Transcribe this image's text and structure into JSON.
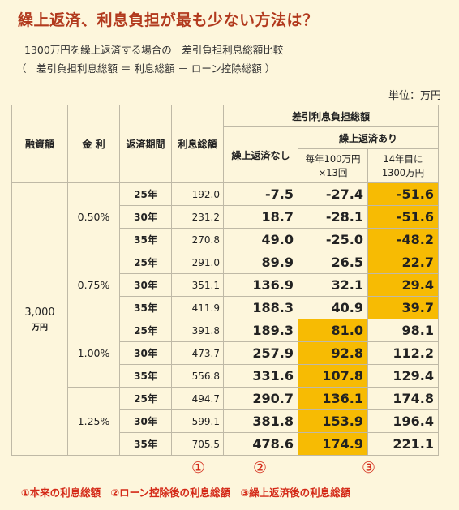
{
  "title": "繰上返済、利息負担が最も少ない方法は？",
  "subtitle1": "1300万円を繰上返済する場合の　差引負担利息総額比較",
  "subtitle2": "（　差引負担利息総額 ＝ 利息総額 － ローン控除総額 ）",
  "unit": "単位：万円",
  "headers": {
    "loan_amount": "融資額",
    "rate": "金 利",
    "period": "返済期間",
    "total_interest": "利息総額",
    "net_total": "差引利息負担総額",
    "no_prepay": "繰上返済なし",
    "with_prepay": "繰上返済あり",
    "option_a_line1": "毎年100万円",
    "option_a_line2": "×13回",
    "option_b_line1": "14年目に",
    "option_b_line2": "1300万円"
  },
  "loan_amount": "3,000",
  "loan_unit": "万円",
  "rates": [
    "0.50%",
    "0.75%",
    "1.00%",
    "1.25%"
  ],
  "rows": [
    {
      "period": "25年",
      "total": "192.0",
      "none": "-7.5",
      "a": "-27.4",
      "b": "-51.6",
      "hl": "b"
    },
    {
      "period": "30年",
      "total": "231.2",
      "none": "18.7",
      "a": "-28.1",
      "b": "-51.6",
      "hl": "b"
    },
    {
      "period": "35年",
      "total": "270.8",
      "none": "49.0",
      "a": "-25.0",
      "b": "-48.2",
      "hl": "b"
    },
    {
      "period": "25年",
      "total": "291.0",
      "none": "89.9",
      "a": "26.5",
      "b": "22.7",
      "hl": "b"
    },
    {
      "period": "30年",
      "total": "351.1",
      "none": "136.9",
      "a": "32.1",
      "b": "29.4",
      "hl": "b"
    },
    {
      "period": "35年",
      "total": "411.9",
      "none": "188.3",
      "a": "40.9",
      "b": "39.7",
      "hl": "b"
    },
    {
      "period": "25年",
      "total": "391.8",
      "none": "189.3",
      "a": "81.0",
      "b": "98.1",
      "hl": "a"
    },
    {
      "period": "30年",
      "total": "473.7",
      "none": "257.9",
      "a": "92.8",
      "b": "112.2",
      "hl": "a"
    },
    {
      "period": "35年",
      "total": "556.8",
      "none": "331.6",
      "a": "107.8",
      "b": "129.4",
      "hl": "a"
    },
    {
      "period": "25年",
      "total": "494.7",
      "none": "290.7",
      "a": "136.1",
      "b": "174.8",
      "hl": "a"
    },
    {
      "period": "30年",
      "total": "599.1",
      "none": "381.8",
      "a": "153.9",
      "b": "196.4",
      "hl": "a"
    },
    {
      "period": "35年",
      "total": "705.5",
      "none": "478.6",
      "a": "174.9",
      "b": "221.1",
      "hl": "a"
    }
  ],
  "markers": [
    "①",
    "②",
    "③"
  ],
  "legend": "①本来の利息総額　②ローン控除後の利息総額　③繰上返済後の利息総額",
  "colors": {
    "highlight": "#f7bb03",
    "title": "#b23a1e",
    "legend": "#d42a18",
    "background": "#fdf6dc"
  }
}
